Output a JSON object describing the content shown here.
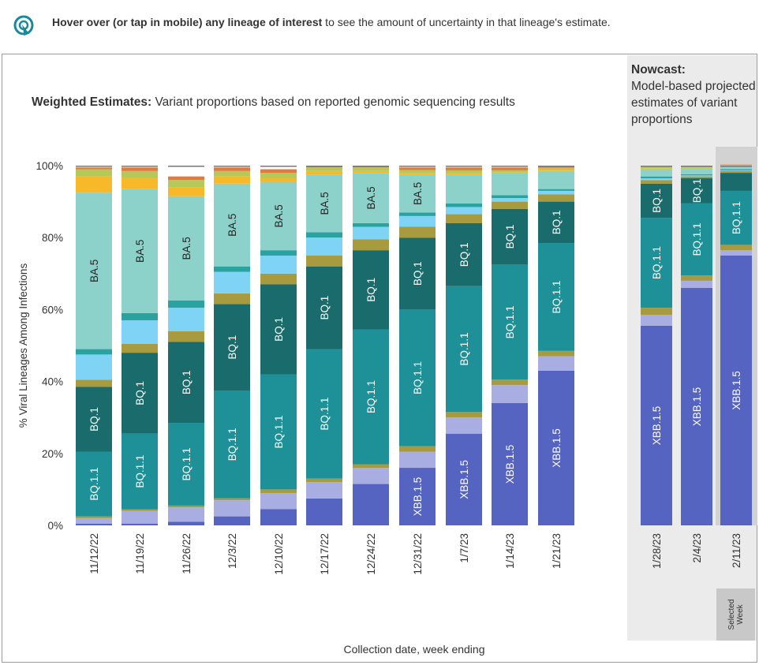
{
  "hint": {
    "bold_text": "Hover over (or tap in mobile) any lineage of interest",
    "rest_text": " to see the amount of uncertainty in that lineage's estimate."
  },
  "chart_title": {
    "bold": "Weighted Estimates:",
    "rest": " Variant proportions based on reported genomic sequencing results"
  },
  "nowcast": {
    "bold": "Nowcast:",
    "rest": "Model-based projected estimates of variant proportions"
  },
  "selected_label": "Selected\nWeek",
  "colors": {
    "XBB.1.5": "#5563c1",
    "XBB_light": "#a8aee2",
    "olive": "#a89a3e",
    "BQ.1.1": "#1e9098",
    "BQ.1": "#1a6b6b",
    "olive2": "#a89a3e",
    "lightblue": "#7fd3f5",
    "teal_small": "#2aa3a0",
    "BA.5": "#8dd2ca",
    "yellow": "#f7b92a",
    "green_thin": "#b5c95a",
    "orange_thin": "#e07b3f"
  },
  "chart_data": {
    "type": "bar",
    "stacked": true,
    "xlabel": "Collection date, week ending",
    "ylabel": "% Viral Lineages Among Infections",
    "ylim": [
      0,
      100
    ],
    "yticks": [
      "0%",
      "20%",
      "40%",
      "60%",
      "80%",
      "100%"
    ],
    "categories": [
      "11/12/22",
      "11/19/22",
      "11/26/22",
      "12/3/22",
      "12/10/22",
      "12/17/22",
      "12/24/22",
      "12/31/22",
      "1/7/23",
      "1/14/23",
      "1/21/23",
      "1/28/23",
      "2/4/23",
      "2/11/23"
    ],
    "nowcast_categories": [
      "1/28/23",
      "2/4/23",
      "2/11/23"
    ],
    "series": [
      {
        "name": "XBB.1.5",
        "color_key": "XBB.1.5",
        "values": [
          0.5,
          0.5,
          1,
          2.5,
          4.5,
          7.5,
          11.5,
          16,
          25.5,
          34,
          43,
          55.5,
          66,
          75
        ]
      },
      {
        "name": "",
        "color_key": "XBB_light",
        "values": [
          1.5,
          3.5,
          4,
          4.5,
          4.5,
          4.5,
          4.5,
          4.5,
          4.5,
          5,
          4,
          3,
          2,
          1.5
        ]
      },
      {
        "name": "",
        "color_key": "olive",
        "values": [
          0.5,
          0.5,
          0.5,
          0.5,
          1,
          1,
          1,
          1.5,
          1.5,
          1.5,
          1.5,
          2,
          1.5,
          1.5
        ]
      },
      {
        "name": "BQ.1.1",
        "color_key": "BQ.1.1",
        "values": [
          18,
          21,
          23,
          30,
          32,
          36,
          37.5,
          38,
          35,
          32,
          30,
          25,
          20,
          15
        ]
      },
      {
        "name": "BQ.1",
        "color_key": "BQ.1",
        "values": [
          18,
          22.5,
          22.5,
          24,
          25,
          23,
          22,
          20,
          17.5,
          15.5,
          11.5,
          9.5,
          7,
          5
        ]
      },
      {
        "name": "",
        "color_key": "olive2",
        "values": [
          2,
          2.5,
          3,
          3,
          3,
          3,
          3,
          3,
          2.5,
          2,
          2,
          1,
          0.5,
          0.5
        ]
      },
      {
        "name": "",
        "color_key": "lightblue",
        "values": [
          7,
          6.5,
          6.5,
          6,
          5,
          5,
          3.5,
          3,
          2,
          1,
          1,
          0.5,
          0.3,
          0.2
        ]
      },
      {
        "name": "",
        "color_key": "teal_small",
        "values": [
          1.5,
          2,
          2,
          1.5,
          1.5,
          1.5,
          1,
          1,
          1,
          0.8,
          0.5,
          0.5,
          0.3,
          0.3
        ]
      },
      {
        "name": "BA.5",
        "color_key": "BA.5",
        "values": [
          43.5,
          34.5,
          29,
          23,
          19,
          16,
          14,
          10.5,
          8,
          6,
          5,
          2,
          1.5,
          0.8
        ]
      },
      {
        "name": "",
        "color_key": "yellow",
        "values": [
          4.5,
          3,
          2.5,
          2,
          1,
          1,
          0.5,
          0.5,
          0.4,
          0.3,
          0.3,
          0.3,
          0.3,
          0.2
        ]
      },
      {
        "name": "",
        "color_key": "green_thin",
        "values": [
          2,
          2,
          2,
          1.5,
          1.5,
          1,
          1,
          0.8,
          0.8,
          0.6,
          0.6,
          0.4,
          0.4,
          0.2
        ]
      },
      {
        "name": "",
        "color_key": "orange_thin",
        "values": [
          0.5,
          1,
          1,
          1,
          1,
          0.5,
          0.5,
          0.7,
          0.8,
          0.8,
          0.6,
          0.3,
          0.2,
          0.1
        ]
      }
    ],
    "labels_per_bar": [
      {
        "BQ.1.1": "BQ.1.1",
        "BQ.1": "BQ.1",
        "BA.5": "BA.5"
      },
      {
        "BQ.1.1": "BQ.1.1",
        "BQ.1": "BQ.1",
        "BA.5": "BA.5"
      },
      {
        "BQ.1.1": "BQ.1.1",
        "BQ.1": "BQ.1",
        "BA.5": "BA.5"
      },
      {
        "BQ.1.1": "BQ.1.1",
        "BQ.1": "BQ.1",
        "BA.5": "BA.5"
      },
      {
        "BQ.1.1": "BQ.1.1",
        "BQ.1": "BQ.1",
        "BA.5": "BA.5"
      },
      {
        "BQ.1.1": "BQ.1.1",
        "BQ.1": "BQ.1",
        "BA.5": "BA.5"
      },
      {
        "BQ.1.1": "BQ.1.1",
        "BQ.1": "BQ.1",
        "BA.5": "BA.5"
      },
      {
        "XBB.1.5": "XBB.1.5",
        "BQ.1.1": "BQ.1.1",
        "BQ.1": "BQ.1",
        "BA.5": "BA.5"
      },
      {
        "XBB.1.5": "XBB.1.5",
        "BQ.1.1": "BQ.1.1",
        "BQ.1": "BQ.1"
      },
      {
        "XBB.1.5": "XBB.1.5",
        "BQ.1.1": "BQ.1.1",
        "BQ.1": "BQ.1"
      },
      {
        "XBB.1.5": "XBB.1.5",
        "BQ.1.1": "BQ.1.1",
        "BQ.1": "BQ.1"
      },
      {
        "XBB.1.5": "XBB.1.5",
        "BQ.1.1": "BQ.1.1",
        "BQ.1": "BQ.1"
      },
      {
        "XBB.1.5": "XBB.1.5",
        "BQ.1.1": "BQ.1.1",
        "BQ.1": "BQ.1"
      },
      {
        "XBB.1.5": "XBB.1.5",
        "BQ.1.1": "BQ.1.1"
      }
    ]
  }
}
